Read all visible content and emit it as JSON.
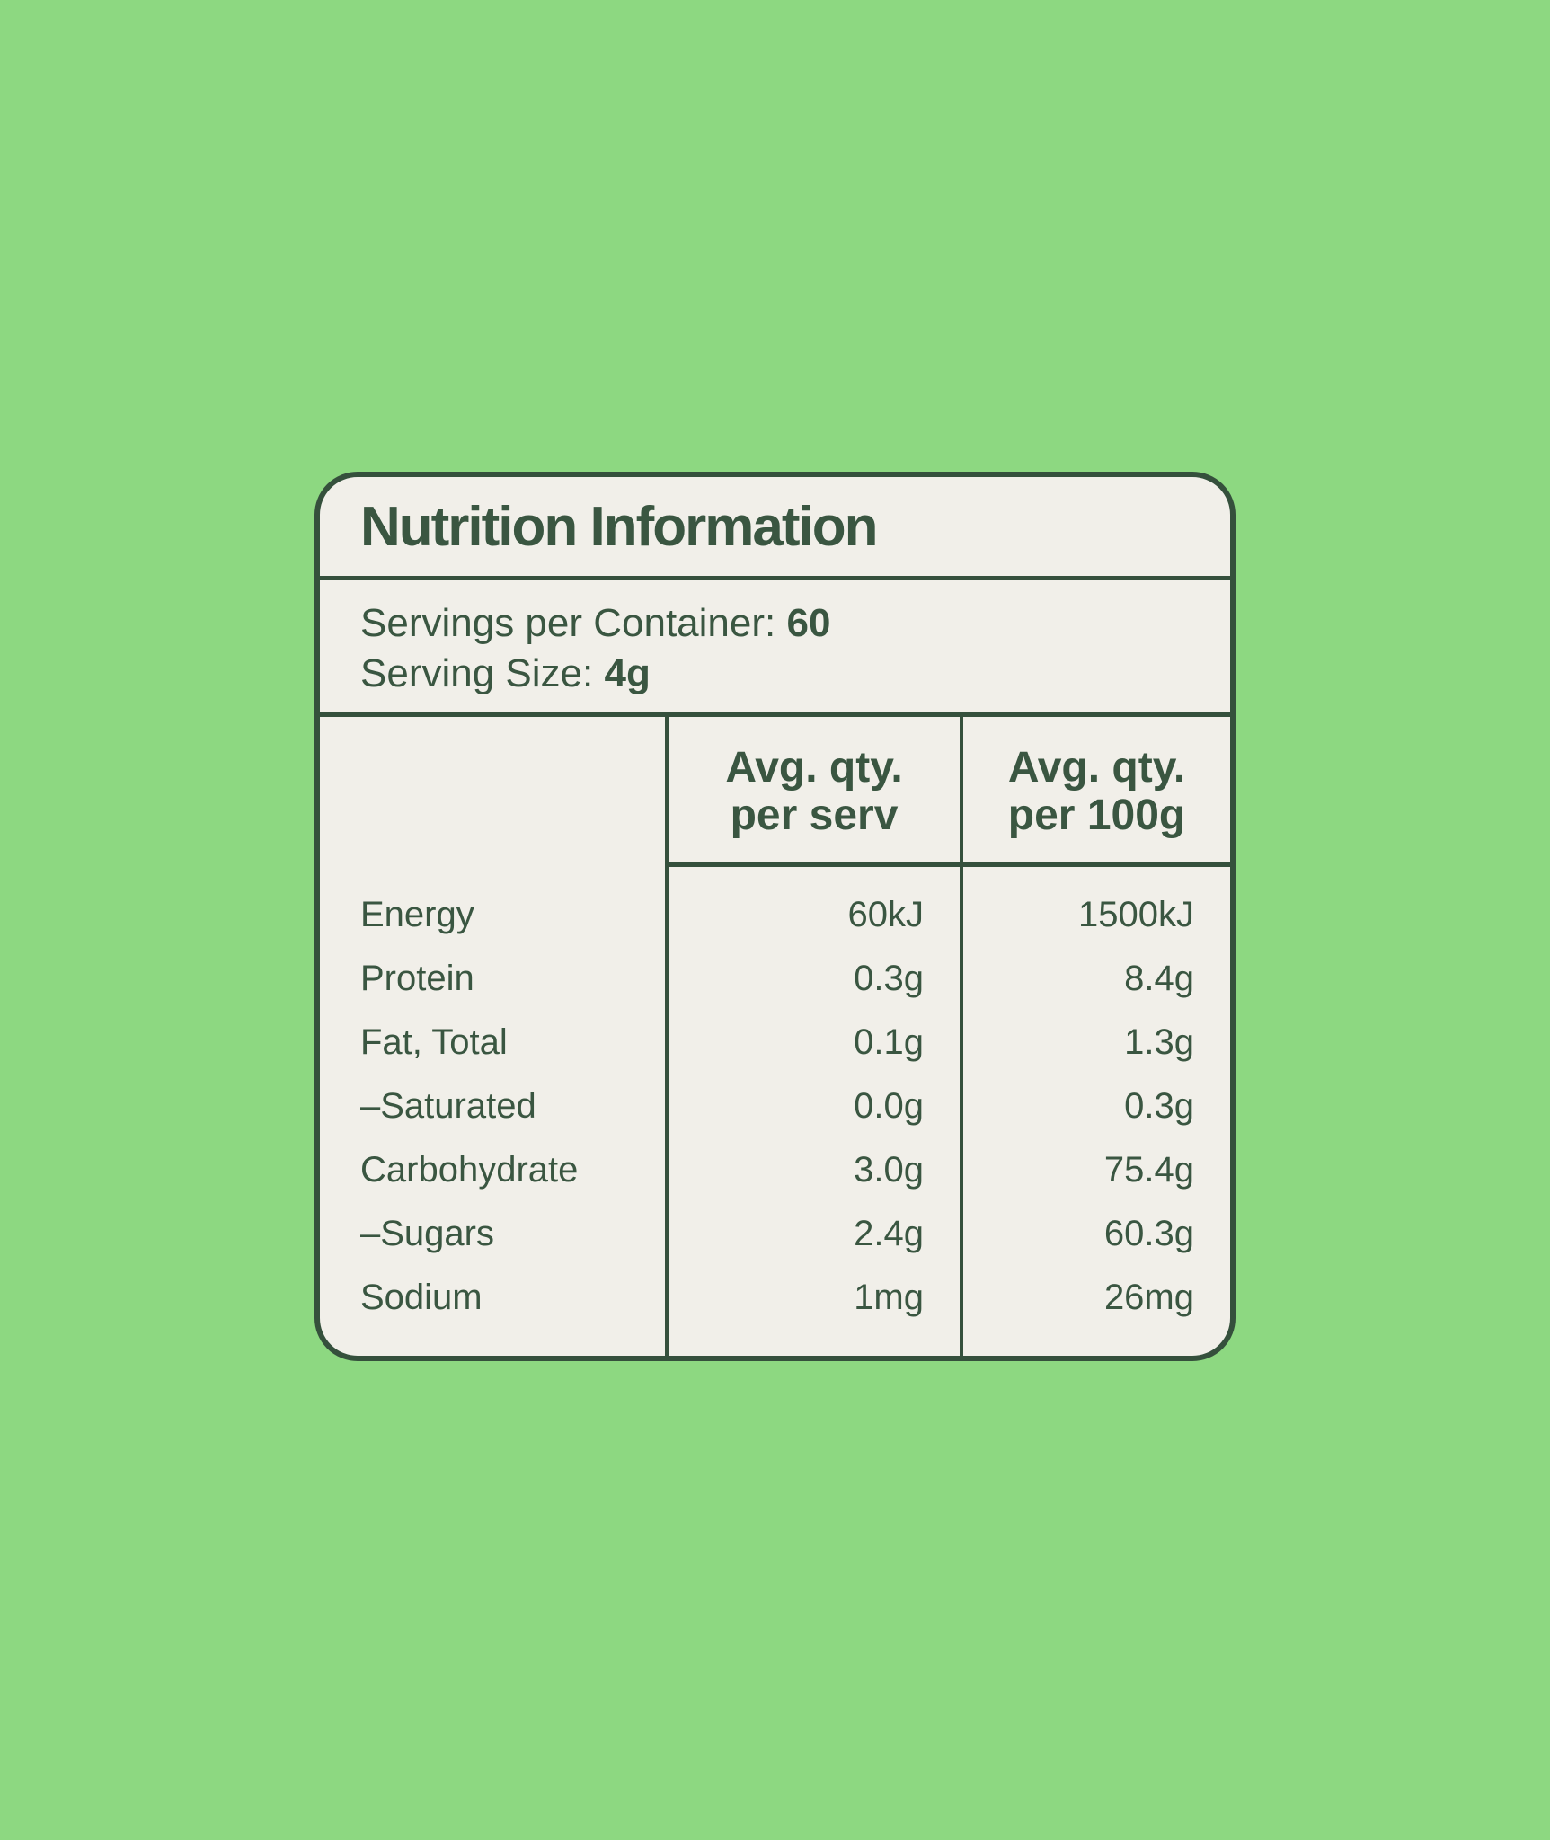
{
  "colors": {
    "background": "#8DD881",
    "card_background": "#F1EFE9",
    "text_green": "#3A5641",
    "line_green": "#35503C"
  },
  "label": {
    "title": "Nutrition Information",
    "servings_per_container_label": "Servings per Container:",
    "servings_per_container_value": "60",
    "serving_size_label": "Serving Size:",
    "serving_size_value": "4g",
    "table": {
      "column_headers": [
        {
          "line1": "Avg. qty.",
          "line2": "per serv"
        },
        {
          "line1": "Avg. qty.",
          "line2": "per 100g"
        }
      ],
      "rows": [
        {
          "nutrient": "Energy",
          "per_serv": "60kJ",
          "per_100g": "1500kJ"
        },
        {
          "nutrient": "Protein",
          "per_serv": "0.3g",
          "per_100g": "8.4g"
        },
        {
          "nutrient": "Fat, Total",
          "per_serv": "0.1g",
          "per_100g": "1.3g"
        },
        {
          "nutrient": "–Saturated",
          "per_serv": "0.0g",
          "per_100g": "0.3g"
        },
        {
          "nutrient": "Carbohydrate",
          "per_serv": "3.0g",
          "per_100g": "75.4g"
        },
        {
          "nutrient": "–Sugars",
          "per_serv": "2.4g",
          "per_100g": "60.3g"
        },
        {
          "nutrient": "Sodium",
          "per_serv": "1mg",
          "per_100g": "26mg"
        }
      ]
    }
  }
}
